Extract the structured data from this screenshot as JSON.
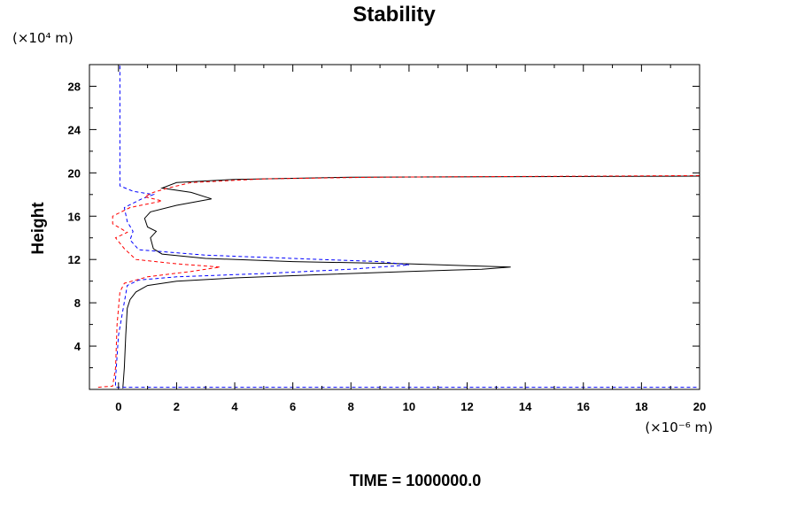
{
  "chart_data": {
    "type": "line",
    "title": "Stability",
    "ylabel": "Height",
    "y_unit": "(×10⁴ m)",
    "x_unit": "(×10⁻⁶ m)",
    "footer": "TIME = 1000000.0",
    "xlim": [
      -1,
      20
    ],
    "ylim": [
      0,
      30
    ],
    "x_ticks": [
      0,
      2,
      4,
      6,
      8,
      10,
      12,
      14,
      16,
      18,
      20
    ],
    "y_ticks": [
      4,
      8,
      12,
      16,
      20,
      24,
      28
    ],
    "grid": false,
    "series": [
      {
        "color": "#000000",
        "dash": "solid",
        "points": [
          [
            0.15,
            0.1
          ],
          [
            0.2,
            2
          ],
          [
            0.25,
            5
          ],
          [
            0.3,
            7.5
          ],
          [
            0.4,
            8.3
          ],
          [
            0.6,
            9.0
          ],
          [
            1.0,
            9.6
          ],
          [
            2,
            10.0
          ],
          [
            4,
            10.3
          ],
          [
            7,
            10.6
          ],
          [
            10,
            10.9
          ],
          [
            12.5,
            11.1
          ],
          [
            13.5,
            11.3
          ],
          [
            10,
            11.6
          ],
          [
            6,
            11.8
          ],
          [
            3,
            12.1
          ],
          [
            1.5,
            12.5
          ],
          [
            1.2,
            13.0
          ],
          [
            1.1,
            14.0
          ],
          [
            1.3,
            14.6
          ],
          [
            1.0,
            15.0
          ],
          [
            0.9,
            15.8
          ],
          [
            1.1,
            16.4
          ],
          [
            2.0,
            17.0
          ],
          [
            3.2,
            17.6
          ],
          [
            2.5,
            18.2
          ],
          [
            1.5,
            18.6
          ],
          [
            2.0,
            19.1
          ],
          [
            4.0,
            19.4
          ],
          [
            8.0,
            19.6
          ],
          [
            20,
            19.7
          ]
        ]
      },
      {
        "color": "#0000ff",
        "dash": "dashed",
        "points": [
          [
            0.05,
            29.9
          ],
          [
            0.05,
            25
          ],
          [
            0.05,
            20
          ],
          [
            0.05,
            18.8
          ],
          [
            0.5,
            18.3
          ],
          [
            1.2,
            18.0
          ],
          [
            0.8,
            17.6
          ],
          [
            0.2,
            16.8
          ],
          [
            0.3,
            15.5
          ],
          [
            0.5,
            14.6
          ],
          [
            0.4,
            13.8
          ],
          [
            0.7,
            12.9
          ],
          [
            3,
            12.4
          ],
          [
            6,
            12.1
          ],
          [
            9,
            11.8
          ],
          [
            10,
            11.5
          ],
          [
            8,
            11.1
          ],
          [
            5,
            10.7
          ],
          [
            2,
            10.4
          ],
          [
            0.7,
            10.1
          ],
          [
            0.3,
            9.6
          ],
          [
            0.0,
            5
          ],
          [
            -0.1,
            1.0
          ],
          [
            -0.1,
            0.2
          ],
          [
            20,
            0.2
          ]
        ]
      },
      {
        "color": "#ff0000",
        "dash": "dashed",
        "points": [
          [
            -0.7,
            0.2
          ],
          [
            -0.2,
            0.3
          ],
          [
            -0.1,
            2
          ],
          [
            -0.05,
            6
          ],
          [
            0.05,
            9.0
          ],
          [
            0.2,
            9.8
          ],
          [
            1.0,
            10.4
          ],
          [
            2.5,
            10.9
          ],
          [
            3.5,
            11.3
          ],
          [
            2,
            11.6
          ],
          [
            0.6,
            12.0
          ],
          [
            0.2,
            13.0
          ],
          [
            -0.1,
            14.0
          ],
          [
            0.3,
            14.5
          ],
          [
            -0.2,
            15.3
          ],
          [
            -0.2,
            16.0
          ],
          [
            0.4,
            16.8
          ],
          [
            1.5,
            17.4
          ],
          [
            0.9,
            17.8
          ],
          [
            1.2,
            18.2
          ],
          [
            1.7,
            18.6
          ],
          [
            2.5,
            19.1
          ],
          [
            5,
            19.45
          ],
          [
            9,
            19.6
          ],
          [
            20,
            19.75
          ]
        ]
      }
    ]
  }
}
